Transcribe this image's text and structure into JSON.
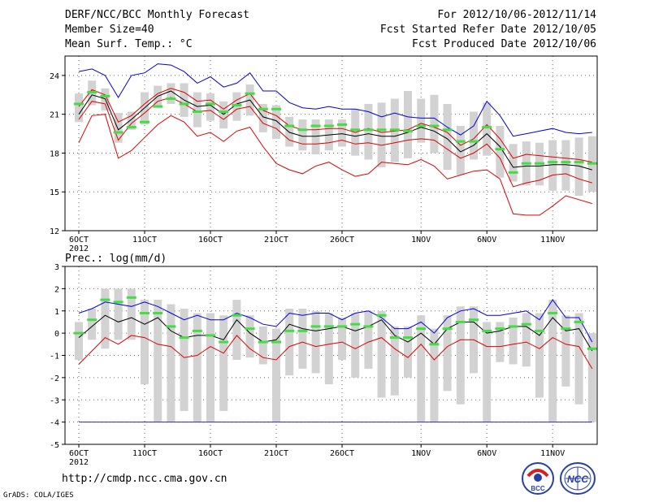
{
  "header": {
    "title": "DERF/NCC/BCC Monthly Forecast",
    "member_size": "Member Size=40",
    "variable": "Mean Surf. Temp.: °C",
    "period": "For 2012/10/06-2012/11/14",
    "start_date": "Fcst Started Refer Date 2012/10/05",
    "produced_date": "Fcst Produced Date 2012/10/06"
  },
  "footer": {
    "url": "http://cmdp.ncc.cma.gov.cn",
    "credit": "GrADS: COLA/IGES",
    "logo_bcc": "BCC",
    "logo_ncc": "NCC"
  },
  "colors": {
    "max_line": "#0000dd",
    "min_line": "#dd0000",
    "mean_line": "#000000",
    "box": "#d2d2d2",
    "marker": "#44dd44",
    "grid": "#666666"
  },
  "chart_data": [
    {
      "type": "line",
      "title": "Mean Surf. Temp.: °C",
      "x_tick_labels": [
        "6OCT",
        "11OCT",
        "16OCT",
        "21OCT",
        "26OCT",
        "1NOV",
        "6NOV",
        "11NOV"
      ],
      "x_tick_days": [
        0,
        5,
        10,
        15,
        20,
        26,
        31,
        36
      ],
      "x_year_label": "2012",
      "ylim": [
        12,
        25.5
      ],
      "y_ticks": [
        12,
        15,
        18,
        21,
        24
      ],
      "days": [
        0,
        1,
        2,
        3,
        4,
        5,
        6,
        7,
        8,
        9,
        10,
        11,
        12,
        13,
        14,
        15,
        16,
        17,
        18,
        19,
        20,
        21,
        22,
        23,
        24,
        25,
        26,
        27,
        28,
        29,
        30,
        31,
        32,
        33,
        34,
        35,
        36,
        37,
        38,
        39
      ],
      "series": [
        {
          "name": "max",
          "values": [
            24.3,
            24.5,
            24.0,
            22.3,
            24.0,
            24.2,
            24.9,
            24.8,
            24.3,
            23.4,
            23.9,
            23.1,
            23.4,
            24.2,
            22.8,
            22.8,
            21.9,
            21.5,
            21.4,
            21.6,
            21.4,
            21.4,
            21.2,
            20.8,
            21.1,
            20.8,
            20.7,
            20.7,
            20.0,
            19.4,
            20.1,
            22.0,
            20.9,
            19.3,
            19.5,
            19.7,
            19.9,
            19.6,
            19.5,
            19.6
          ]
        },
        {
          "name": "upper",
          "values": [
            21.6,
            22.9,
            22.5,
            20.4,
            20.9,
            21.8,
            22.6,
            23.0,
            22.7,
            22.0,
            22.1,
            21.4,
            22.1,
            22.6,
            21.3,
            20.9,
            20.1,
            19.8,
            19.8,
            19.9,
            19.9,
            19.6,
            19.9,
            19.6,
            19.7,
            19.8,
            20.3,
            20.0,
            19.6,
            18.6,
            19.1,
            20.2,
            19.1,
            17.6,
            17.9,
            17.8,
            17.7,
            17.6,
            17.5,
            17.3
          ]
        },
        {
          "name": "mean",
          "values": [
            21.0,
            22.5,
            22.2,
            19.8,
            20.6,
            21.5,
            22.4,
            22.8,
            22.1,
            21.6,
            21.7,
            21.0,
            21.8,
            22.1,
            20.8,
            20.5,
            19.6,
            19.3,
            19.3,
            19.4,
            19.5,
            19.3,
            19.5,
            19.3,
            19.3,
            19.6,
            20.0,
            19.7,
            19.1,
            18.1,
            18.6,
            19.5,
            18.5,
            16.9,
            17.0,
            17.0,
            17.1,
            17.1,
            17.0,
            16.7
          ]
        },
        {
          "name": "lower",
          "values": [
            20.6,
            22.0,
            21.8,
            19.0,
            20.3,
            21.1,
            22.0,
            22.3,
            21.8,
            21.2,
            21.3,
            20.6,
            21.4,
            21.6,
            20.3,
            19.9,
            19.0,
            18.7,
            18.7,
            18.8,
            19.0,
            18.7,
            18.8,
            18.6,
            18.8,
            19.0,
            19.1,
            19.0,
            18.3,
            17.6,
            18.0,
            18.7,
            17.6,
            15.4,
            15.7,
            15.9,
            16.3,
            16.4,
            16.0,
            15.7
          ]
        },
        {
          "name": "min",
          "values": [
            18.8,
            20.9,
            21.0,
            17.6,
            18.2,
            19.2,
            20.2,
            20.9,
            20.4,
            19.3,
            19.6,
            18.9,
            19.7,
            20.0,
            18.5,
            17.2,
            16.7,
            16.4,
            17.0,
            17.3,
            16.7,
            16.2,
            16.4,
            17.3,
            17.2,
            17.1,
            17.5,
            17.0,
            16.0,
            16.3,
            16.6,
            16.7,
            16.0,
            13.3,
            13.2,
            13.2,
            13.9,
            14.7,
            14.4,
            14.1
          ]
        }
      ],
      "box_high": [
        22.6,
        23.6,
        23.0,
        21.1,
        21.2,
        22.7,
        23.2,
        23.4,
        23.4,
        22.7,
        22.6,
        22.0,
        22.7,
        23.3,
        21.8,
        21.7,
        20.8,
        20.6,
        20.6,
        20.6,
        20.6,
        21.4,
        21.8,
        21.9,
        22.2,
        22.8,
        22.2,
        22.5,
        21.8,
        20.1,
        21.2,
        21.9,
        20.1,
        18.7,
        18.9,
        18.8,
        19.0,
        19.0,
        19.2,
        19.3
      ],
      "box_low": [
        20.4,
        21.7,
        21.3,
        18.8,
        19.8,
        20.2,
        21.6,
        21.8,
        20.8,
        20.0,
        20.5,
        19.9,
        20.5,
        20.9,
        19.6,
        19.1,
        18.5,
        18.2,
        17.9,
        18.2,
        18.5,
        17.8,
        17.5,
        16.9,
        17.3,
        17.6,
        18.8,
        18.0,
        16.7,
        16.3,
        17.5,
        17.8,
        16.1,
        15.8,
        15.5,
        15.5,
        15.1,
        15.1,
        14.7,
        15.0
      ],
      "markers": [
        21.8,
        22.7,
        22.4,
        19.6,
        20.0,
        20.4,
        21.6,
        22.2,
        21.8,
        21.2,
        21.8,
        21.2,
        21.7,
        22.6,
        21.4,
        21.4,
        20.1,
        19.8,
        20.1,
        20.1,
        20.2,
        19.8,
        19.8,
        19.8,
        19.8,
        19.7,
        20.1,
        20.1,
        19.8,
        18.9,
        18.9,
        20.0,
        18.3,
        16.5,
        17.2,
        17.2,
        17.3,
        17.3,
        17.3,
        17.2
      ]
    },
    {
      "type": "line",
      "title": "Prec.: log(mm/d)",
      "x_tick_labels": [
        "6OCT",
        "11OCT",
        "16OCT",
        "21OCT",
        "26OCT",
        "1NOV",
        "6NOV",
        "11NOV"
      ],
      "x_tick_days": [
        0,
        5,
        10,
        15,
        20,
        26,
        31,
        36
      ],
      "x_year_label": "2012",
      "ylim": [
        -5,
        3
      ],
      "y_ticks": [
        -5,
        -4,
        -3,
        -2,
        -1,
        0,
        1,
        2,
        3
      ],
      "days": [
        0,
        1,
        2,
        3,
        4,
        5,
        6,
        7,
        8,
        9,
        10,
        11,
        12,
        13,
        14,
        15,
        16,
        17,
        18,
        19,
        20,
        21,
        22,
        23,
        24,
        25,
        26,
        27,
        28,
        29,
        30,
        31,
        32,
        33,
        34,
        35,
        36,
        37,
        38,
        39
      ],
      "series": [
        {
          "name": "max",
          "values": [
            0.9,
            1.1,
            1.4,
            1.3,
            1.2,
            1.4,
            1.2,
            0.9,
            0.6,
            0.8,
            0.6,
            0.6,
            0.9,
            0.7,
            0.4,
            0.3,
            0.9,
            0.8,
            0.9,
            0.9,
            0.6,
            0.9,
            1.0,
            0.7,
            0.2,
            0.2,
            0.5,
            0.0,
            0.7,
            1.0,
            1.1,
            0.8,
            0.8,
            0.9,
            1.0,
            0.6,
            1.5,
            0.7,
            0.7,
            -0.4
          ]
        },
        {
          "name": "mean",
          "values": [
            -0.2,
            0.3,
            0.8,
            0.5,
            0.7,
            0.4,
            0.7,
            0.1,
            -0.2,
            -0.1,
            -0.1,
            -0.3,
            0.6,
            0.0,
            -0.4,
            -0.3,
            0.4,
            0.2,
            0.1,
            0.2,
            0.3,
            0.1,
            0.3,
            0.6,
            -0.1,
            -0.4,
            0.0,
            -0.5,
            0.2,
            0.5,
            0.5,
            0.0,
            0.1,
            0.3,
            0.3,
            -0.1,
            0.7,
            0.1,
            0.2,
            -0.8
          ]
        },
        {
          "name": "min",
          "values": [
            -1.4,
            -0.8,
            -0.2,
            -0.5,
            -0.1,
            -0.2,
            -0.5,
            -0.6,
            -1.1,
            -1.0,
            -0.6,
            -0.9,
            -0.1,
            -0.7,
            -1.1,
            -1.2,
            -0.6,
            -0.4,
            -0.6,
            -0.5,
            -0.4,
            -0.7,
            -0.4,
            -0.2,
            -0.7,
            -1.1,
            -0.5,
            -1.2,
            -0.6,
            -0.3,
            -0.3,
            -0.6,
            -0.6,
            -0.5,
            -0.4,
            -0.7,
            -0.2,
            -0.5,
            -0.6,
            -1.6
          ]
        },
        {
          "name": "baseline",
          "values": [
            -4,
            -4,
            -4,
            -4,
            -4,
            -4,
            -4,
            -4,
            -4,
            -4,
            -4,
            -4,
            -4,
            -4,
            -4,
            -4,
            -4,
            -4,
            -4,
            -4,
            -4,
            -4,
            -4,
            -4,
            -4,
            -4,
            -4,
            -4,
            -4,
            -4,
            -4,
            -4,
            -4,
            -4,
            -4,
            -4,
            -4,
            -4,
            -4,
            -4
          ]
        }
      ],
      "box_high": [
        0.5,
        1.1,
        2.0,
        2.0,
        2.0,
        1.5,
        1.5,
        1.3,
        1.1,
        0.9,
        0.9,
        0.8,
        1.5,
        0.8,
        0.3,
        0.2,
        1.1,
        1.1,
        1.0,
        0.9,
        0.7,
        0.9,
        1.0,
        1.0,
        0.3,
        0.3,
        0.8,
        0.2,
        0.8,
        1.2,
        1.2,
        0.5,
        0.5,
        0.7,
        0.9,
        0.9,
        1.5,
        0.8,
        0.9,
        0.0
      ],
      "box_low": [
        -1.2,
        -0.3,
        -0.7,
        -0.3,
        -0.3,
        -2.3,
        -4.0,
        -4.0,
        -3.5,
        -4.0,
        -4.0,
        -3.5,
        -1.2,
        -1.1,
        -1.4,
        -4.0,
        -1.9,
        -1.6,
        -1.8,
        -2.3,
        -1.2,
        -2.0,
        -1.6,
        -2.9,
        -2.8,
        -2.0,
        -4.0,
        -4.0,
        -2.6,
        -3.2,
        -1.8,
        -4.0,
        -1.3,
        -1.4,
        -1.5,
        -2.9,
        -4.0,
        -2.4,
        -3.2,
        -4.0
      ],
      "markers": [
        0.0,
        0.6,
        1.5,
        1.4,
        1.6,
        0.9,
        0.9,
        0.3,
        -0.2,
        0.1,
        -0.1,
        -0.4,
        0.8,
        0.2,
        -0.4,
        -0.4,
        0.1,
        0.1,
        0.3,
        0.3,
        0.3,
        0.4,
        0.3,
        0.8,
        -0.2,
        -0.2,
        0.2,
        -0.5,
        0.2,
        0.5,
        0.6,
        0.1,
        0.2,
        0.3,
        0.4,
        0.1,
        0.9,
        0.2,
        0.5,
        -0.7
      ]
    }
  ]
}
